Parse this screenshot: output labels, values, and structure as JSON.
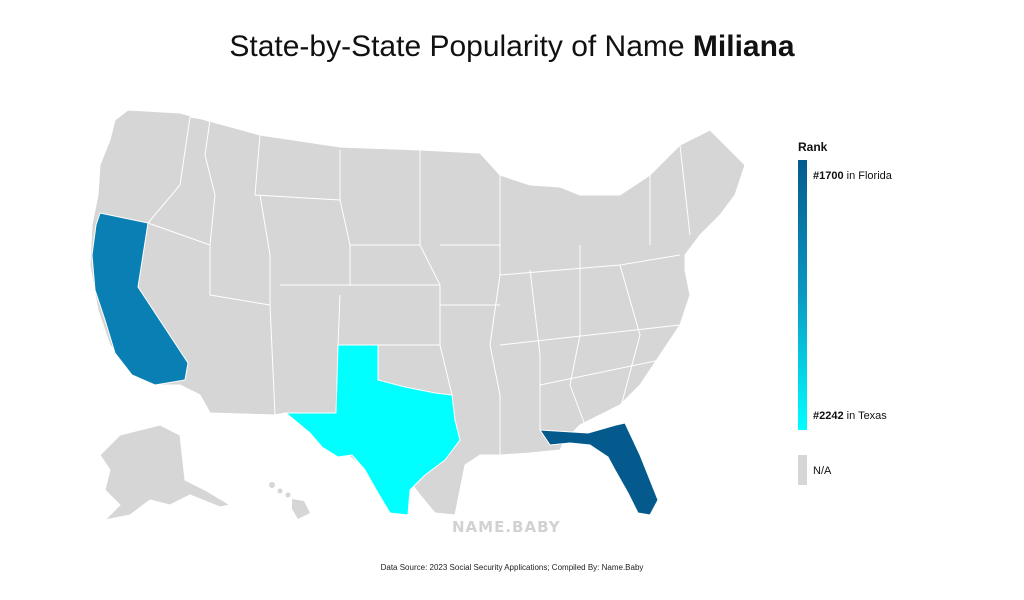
{
  "title": {
    "prefix": "State-by-State Popularity of Name ",
    "name": "Miliana"
  },
  "legend": {
    "title": "Rank",
    "top_rank": "#1700",
    "top_state": " in Florida",
    "bottom_rank": "#2242",
    "bottom_state": " in Texas",
    "na_label": "N/A",
    "colors": {
      "high": "#045a8d",
      "mid": "#0a99c2",
      "low": "#00ffff",
      "na": "#d6d6d6"
    }
  },
  "map_data": {
    "type": "choropleth",
    "states": [
      {
        "state": "Florida",
        "rank": 1700,
        "color": "#045a8d"
      },
      {
        "state": "California",
        "rank": 1851,
        "color": "#0a7fb3"
      },
      {
        "state": "Texas",
        "rank": 2242,
        "color": "#00ffff"
      }
    ],
    "other_states": "N/A"
  },
  "watermark": "NAME.BABY",
  "source": "Data Source: 2023 Social Security Applications; Compiled By: Name.Baby"
}
